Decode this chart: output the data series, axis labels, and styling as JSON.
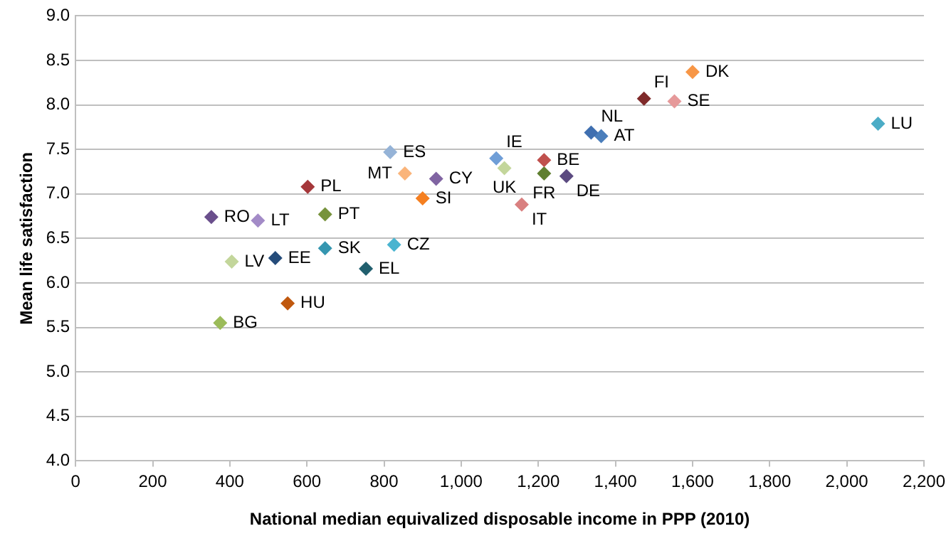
{
  "chart_data": {
    "type": "scatter",
    "xlabel": "National median equivalized disposable income in PPP (2010)",
    "ylabel": "Mean life satisfaction",
    "xlim": [
      0,
      2200
    ],
    "xticks": [
      0,
      200,
      400,
      600,
      800,
      {
        "value": 1000,
        "label": "1,000"
      },
      {
        "value": 1200,
        "label": "1,200"
      },
      {
        "value": 1400,
        "label": "1,400"
      },
      {
        "value": 1600,
        "label": "1,600"
      },
      {
        "value": 1800,
        "label": "1,800"
      },
      {
        "value": 2000,
        "label": "2,000"
      },
      {
        "value": 2200,
        "label": "2,200"
      }
    ],
    "ylim": [
      4,
      9
    ],
    "yticks": [
      {
        "value": 4,
        "label": "4.0"
      },
      {
        "value": 4.5,
        "label": "4.5"
      },
      {
        "value": 5,
        "label": "5.0"
      },
      {
        "value": 5.5,
        "label": "5.5"
      },
      {
        "value": 6,
        "label": "6.0"
      },
      {
        "value": 6.5,
        "label": "6.5"
      },
      {
        "value": 7,
        "label": "7.0"
      },
      {
        "value": 7.5,
        "label": "7.5"
      },
      {
        "value": 8,
        "label": "8.0"
      },
      {
        "value": 8.5,
        "label": "8.5"
      },
      {
        "value": 9,
        "label": "9.0"
      }
    ],
    "grid": "y",
    "legend": false,
    "marker": "diamond",
    "series": [
      {
        "name": "DK",
        "color": "#f79646",
        "x": [
          1600
        ],
        "values": [
          8.37
        ]
      },
      {
        "name": "FI",
        "color": "#7f2a2a",
        "x": [
          1474
        ],
        "values": [
          8.07
        ]
      },
      {
        "name": "SE",
        "color": "#e6999a",
        "x": [
          1553
        ],
        "values": [
          8.04
        ]
      },
      {
        "name": "NL",
        "color": "#3f6fb0",
        "x": [
          1337
        ],
        "values": [
          7.69
        ]
      },
      {
        "name": "AT",
        "color": "#4a7ebb",
        "x": [
          1363
        ],
        "values": [
          7.65
        ]
      },
      {
        "name": "LU",
        "color": "#4bacc6",
        "x": [
          2081
        ],
        "values": [
          7.79
        ]
      },
      {
        "name": "IE",
        "color": "#6f9ed7",
        "x": [
          1091
        ],
        "values": [
          7.4
        ]
      },
      {
        "name": "UK",
        "color": "#c3d69b",
        "x": [
          1112
        ],
        "values": [
          7.29
        ]
      },
      {
        "name": "BE",
        "color": "#c0504d",
        "x": [
          1215
        ],
        "values": [
          7.38
        ]
      },
      {
        "name": "FR",
        "color": "#5f7f30",
        "x": [
          1215
        ],
        "values": [
          7.23
        ]
      },
      {
        "name": "DE",
        "color": "#5b4a80",
        "x": [
          1273
        ],
        "values": [
          7.2
        ]
      },
      {
        "name": "IT",
        "color": "#d98080",
        "x": [
          1157
        ],
        "values": [
          6.88
        ]
      },
      {
        "name": "ES",
        "color": "#95b3d7",
        "x": [
          816
        ],
        "values": [
          7.47
        ]
      },
      {
        "name": "MT",
        "color": "#fab47a",
        "x": [
          854
        ],
        "values": [
          7.23
        ]
      },
      {
        "name": "CY",
        "color": "#8064a2",
        "x": [
          935
        ],
        "values": [
          7.17
        ]
      },
      {
        "name": "SI",
        "color": "#f57f20",
        "x": [
          900
        ],
        "values": [
          6.95
        ]
      },
      {
        "name": "PL",
        "color": "#a5373a",
        "x": [
          602
        ],
        "values": [
          7.08
        ]
      },
      {
        "name": "RO",
        "color": "#6a4f8c",
        "x": [
          352
        ],
        "values": [
          6.74
        ]
      },
      {
        "name": "LT",
        "color": "#a38bc7",
        "x": [
          473
        ],
        "values": [
          6.7
        ]
      },
      {
        "name": "PT",
        "color": "#77933c",
        "x": [
          647
        ],
        "values": [
          6.77
        ]
      },
      {
        "name": "SK",
        "color": "#3596b0",
        "x": [
          647
        ],
        "values": [
          6.39
        ]
      },
      {
        "name": "CZ",
        "color": "#4ab4d0",
        "x": [
          826
        ],
        "values": [
          6.43
        ]
      },
      {
        "name": "LV",
        "color": "#c3d69b",
        "x": [
          405
        ],
        "values": [
          6.24
        ]
      },
      {
        "name": "EE",
        "color": "#254c7a",
        "x": [
          518
        ],
        "values": [
          6.28
        ]
      },
      {
        "name": "EL",
        "color": "#215f6e",
        "x": [
          753
        ],
        "values": [
          6.16
        ]
      },
      {
        "name": "HU",
        "color": "#c0580e",
        "x": [
          550
        ],
        "values": [
          5.77
        ]
      },
      {
        "name": "BG",
        "color": "#9bbb59",
        "x": [
          375
        ],
        "values": [
          5.55
        ]
      }
    ]
  }
}
